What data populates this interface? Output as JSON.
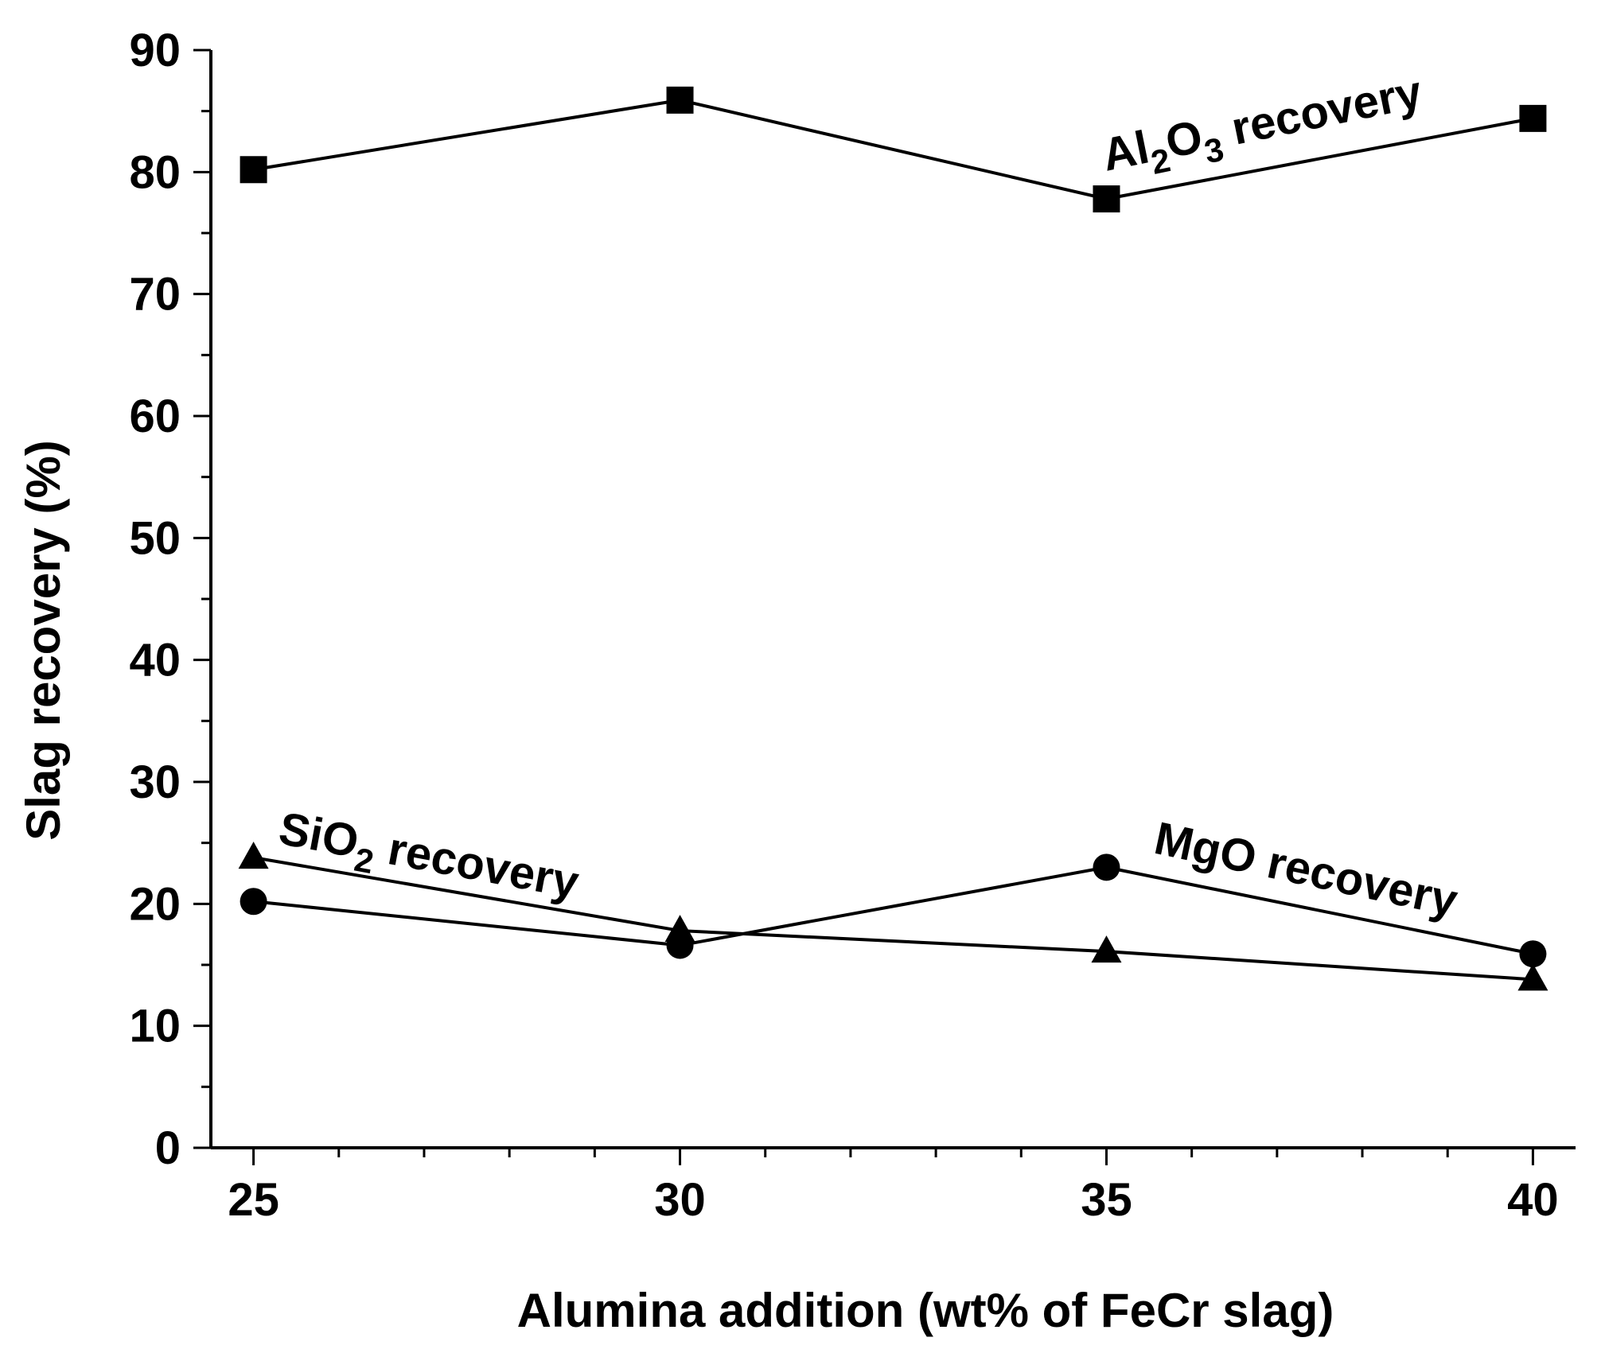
{
  "chart_data": {
    "type": "line",
    "xlabel": "Alumina addition (wt% of FeCr slag)",
    "ylabel": "Slag recovery (%)",
    "x": [
      25,
      30,
      35,
      40
    ],
    "xlim": [
      24.5,
      40.5
    ],
    "ylim": [
      0,
      90
    ],
    "x_ticks": [
      "25",
      "30",
      "35",
      "40"
    ],
    "y_ticks": [
      "0",
      "10",
      "20",
      "30",
      "40",
      "50",
      "60",
      "70",
      "80",
      "90"
    ],
    "grid": false,
    "series": [
      {
        "name": "Al2O3 recovery",
        "label_main": "Al",
        "label_sub1": "2",
        "label_mid": "O",
        "label_sub2": "3",
        "label_rest": " recovery",
        "marker": "square",
        "values": [
          80.2,
          85.9,
          77.8,
          84.4
        ]
      },
      {
        "name": "SiO2 recovery",
        "label_main": "SiO",
        "label_sub1": "2",
        "label_rest": " recovery",
        "marker": "triangle",
        "values": [
          23.8,
          17.8,
          16.1,
          13.8
        ]
      },
      {
        "name": "MgO recovery",
        "label_main": "MgO recovery",
        "marker": "circle",
        "values": [
          20.2,
          16.6,
          23.0,
          15.9
        ]
      }
    ]
  }
}
